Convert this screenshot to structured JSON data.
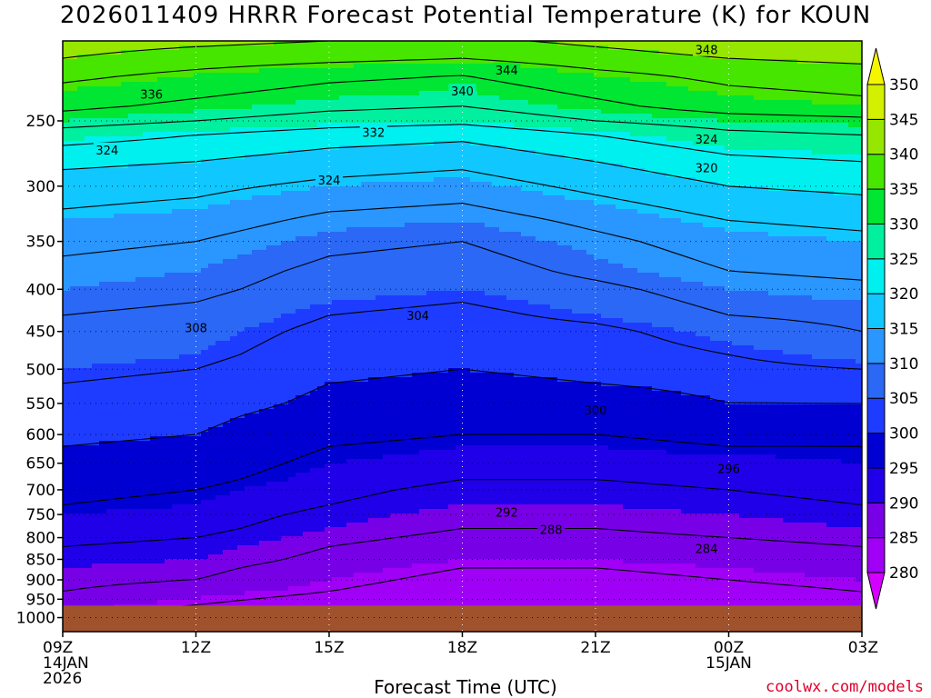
{
  "chart_data": {
    "type": "heatmap",
    "title": "2026011409 HRRR Forecast Potential Temperature (K) for KOUN",
    "xlabel": "Forecast Time (UTC)",
    "ylabel": "",
    "x_ticks": [
      {
        "label": "09Z",
        "sub": [
          "14JAN",
          "2026"
        ],
        "hour": 0
      },
      {
        "label": "12Z",
        "sub": [],
        "hour": 3
      },
      {
        "label": "15Z",
        "sub": [],
        "hour": 6
      },
      {
        "label": "18Z",
        "sub": [],
        "hour": 9
      },
      {
        "label": "21Z",
        "sub": [],
        "hour": 12
      },
      {
        "label": "00Z",
        "sub": [
          "15JAN"
        ],
        "hour": 15
      },
      {
        "label": "03Z",
        "sub": [],
        "hour": 18
      }
    ],
    "xlim": [
      0,
      18
    ],
    "y_ticks": [
      250,
      300,
      350,
      400,
      450,
      500,
      550,
      600,
      650,
      700,
      750,
      800,
      850,
      900,
      950,
      1000
    ],
    "ylim": [
      1040,
      200
    ],
    "y_scale": "log-pressure",
    "surface_pressure": 967,
    "colorbar": {
      "levels": [
        280,
        285,
        290,
        295,
        300,
        305,
        310,
        315,
        320,
        325,
        330,
        335,
        340,
        345,
        350
      ],
      "colors": [
        "#d400ff",
        "#a000f5",
        "#7800e6",
        "#2000e8",
        "#0000d2",
        "#1e3cff",
        "#2a68f5",
        "#2a96ff",
        "#10c8ff",
        "#00f0f0",
        "#00f0a0",
        "#00e632",
        "#46e600",
        "#96e600",
        "#d2f000",
        "#f5f500"
      ]
    },
    "theta_profiles": {
      "hours": [
        0,
        3,
        6,
        9,
        12,
        15,
        18
      ],
      "pressures": [
        965,
        930,
        900,
        870,
        850,
        820,
        800,
        780,
        750,
        730,
        700,
        680,
        650,
        620,
        600,
        570,
        550,
        520,
        500,
        480,
        450,
        430,
        400,
        380,
        350,
        330,
        300,
        280,
        260,
        250,
        240,
        220,
        210,
        200
      ],
      "theta": [
        [
          286,
          288,
          289,
          290,
          291,
          292,
          293,
          294,
          295,
          296,
          297,
          298,
          299,
          300,
          301,
          302,
          303,
          304,
          305,
          306,
          307,
          308,
          310,
          311,
          313,
          315,
          318,
          321,
          326,
          330,
          333,
          337,
          340,
          342
        ],
        [
          284,
          286,
          288,
          289,
          290,
          291,
          292,
          293,
          294,
          295,
          296,
          297,
          298,
          299,
          300,
          301,
          302,
          303,
          304,
          305,
          306,
          307,
          309,
          310,
          312,
          314,
          317,
          320,
          324,
          328,
          331,
          335,
          338,
          341
        ],
        [
          282,
          284,
          285,
          286,
          287,
          288,
          289,
          290,
          291,
          292,
          293,
          294,
          295,
          296,
          297,
          298,
          299,
          300,
          301,
          302,
          303,
          304,
          306,
          307,
          309,
          311,
          315,
          318,
          322,
          326,
          329,
          333,
          337,
          340
        ],
        [
          281,
          282,
          283,
          284,
          285,
          286,
          287,
          288,
          289,
          290,
          291,
          292,
          294,
          295,
          296,
          297,
          298,
          299,
          300,
          301,
          302,
          303,
          305,
          306,
          308,
          310,
          314,
          317,
          321,
          325,
          328,
          332,
          336,
          339
        ],
        [
          281,
          282,
          283,
          284,
          285,
          286,
          287,
          288,
          289,
          290,
          291,
          292,
          294,
          295,
          296,
          297,
          298,
          300,
          301,
          302,
          303,
          305,
          307,
          309,
          311,
          313,
          317,
          320,
          324,
          328,
          331,
          335,
          338,
          341
        ],
        [
          282,
          283,
          284,
          285,
          286,
          287,
          288,
          289,
          290,
          291,
          292,
          293,
          294,
          296,
          297,
          298,
          300,
          301,
          303,
          304,
          306,
          308,
          310,
          312,
          314,
          316,
          320,
          323,
          327,
          330,
          334,
          337,
          340,
          343
        ],
        [
          283,
          284,
          285,
          286,
          287,
          288,
          289,
          290,
          291,
          292,
          293,
          294,
          295,
          296,
          297,
          299,
          300,
          302,
          304,
          306,
          308,
          309,
          311,
          313,
          315,
          317,
          321,
          324,
          328,
          331,
          335,
          338,
          341,
          344
        ]
      ]
    },
    "contour_labels": [
      {
        "value": "348",
        "hour": 14.5,
        "pressure": 205
      },
      {
        "value": "344",
        "hour": 10.0,
        "pressure": 217
      },
      {
        "value": "340",
        "hour": 9.0,
        "pressure": 230
      },
      {
        "value": "336",
        "hour": 2.0,
        "pressure": 232
      },
      {
        "value": "332",
        "hour": 7.0,
        "pressure": 258
      },
      {
        "value": "324",
        "hour": 1.0,
        "pressure": 271
      },
      {
        "value": "324",
        "hour": 6.0,
        "pressure": 295
      },
      {
        "value": "324",
        "hour": 14.5,
        "pressure": 263
      },
      {
        "value": "320",
        "hour": 14.5,
        "pressure": 285
      },
      {
        "value": "308",
        "hour": 3.0,
        "pressure": 445
      },
      {
        "value": "304",
        "hour": 8.0,
        "pressure": 430
      },
      {
        "value": "300",
        "hour": 12.0,
        "pressure": 560
      },
      {
        "value": "296",
        "hour": 15.0,
        "pressure": 660
      },
      {
        "value": "292",
        "hour": 10.0,
        "pressure": 745
      },
      {
        "value": "288",
        "hour": 11.0,
        "pressure": 782
      },
      {
        "value": "284",
        "hour": 14.5,
        "pressure": 825
      }
    ],
    "grid": true
  },
  "credit": "coolwx.com/models"
}
